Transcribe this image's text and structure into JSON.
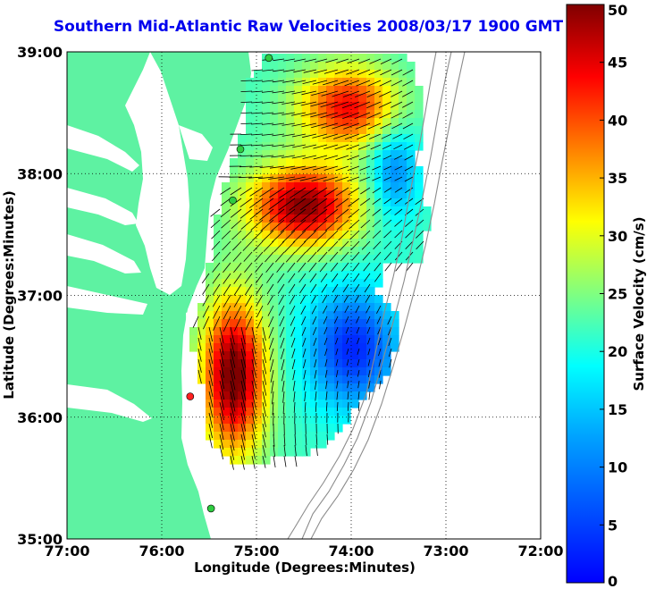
{
  "title": "Southern Mid-Atlantic Raw Velocities 2008/03/17 1900 GMT",
  "x_axis": {
    "label": "Longitude (Degrees:Minutes)",
    "ticks": [
      "77:00",
      "76:00",
      "75:00",
      "74:00",
      "73:00",
      "72:00"
    ],
    "range": [
      -77,
      -72
    ]
  },
  "y_axis": {
    "label": "Latitude (Degrees:Minutes)",
    "ticks": [
      "39:00",
      "38:00",
      "37:00",
      "36:00",
      "35:00"
    ],
    "range": [
      35,
      39
    ]
  },
  "colorbar": {
    "label": "Surface Velocity (cm/s)",
    "ticks": [
      "50",
      "45",
      "40",
      "35",
      "30",
      "25",
      "20",
      "15",
      "10",
      "5",
      "0"
    ],
    "range": [
      0,
      50
    ],
    "colormap": "jet"
  },
  "colors": {
    "land": "#5ef2a2",
    "grid": "#000000",
    "title": "#0000ee",
    "vector": "#000000",
    "station_green": "#2ecc40",
    "station_red": "#ff2020"
  },
  "stations": [
    {
      "lon": -74.87,
      "lat": 38.95,
      "color": "green"
    },
    {
      "lon": -75.17,
      "lat": 38.2,
      "color": "green"
    },
    {
      "lon": -75.25,
      "lat": 37.78,
      "color": "green"
    },
    {
      "lon": -75.7,
      "lat": 36.17,
      "color": "red"
    },
    {
      "lon": -75.48,
      "lat": 35.25,
      "color": "green"
    }
  ],
  "grid": "dotted"
}
